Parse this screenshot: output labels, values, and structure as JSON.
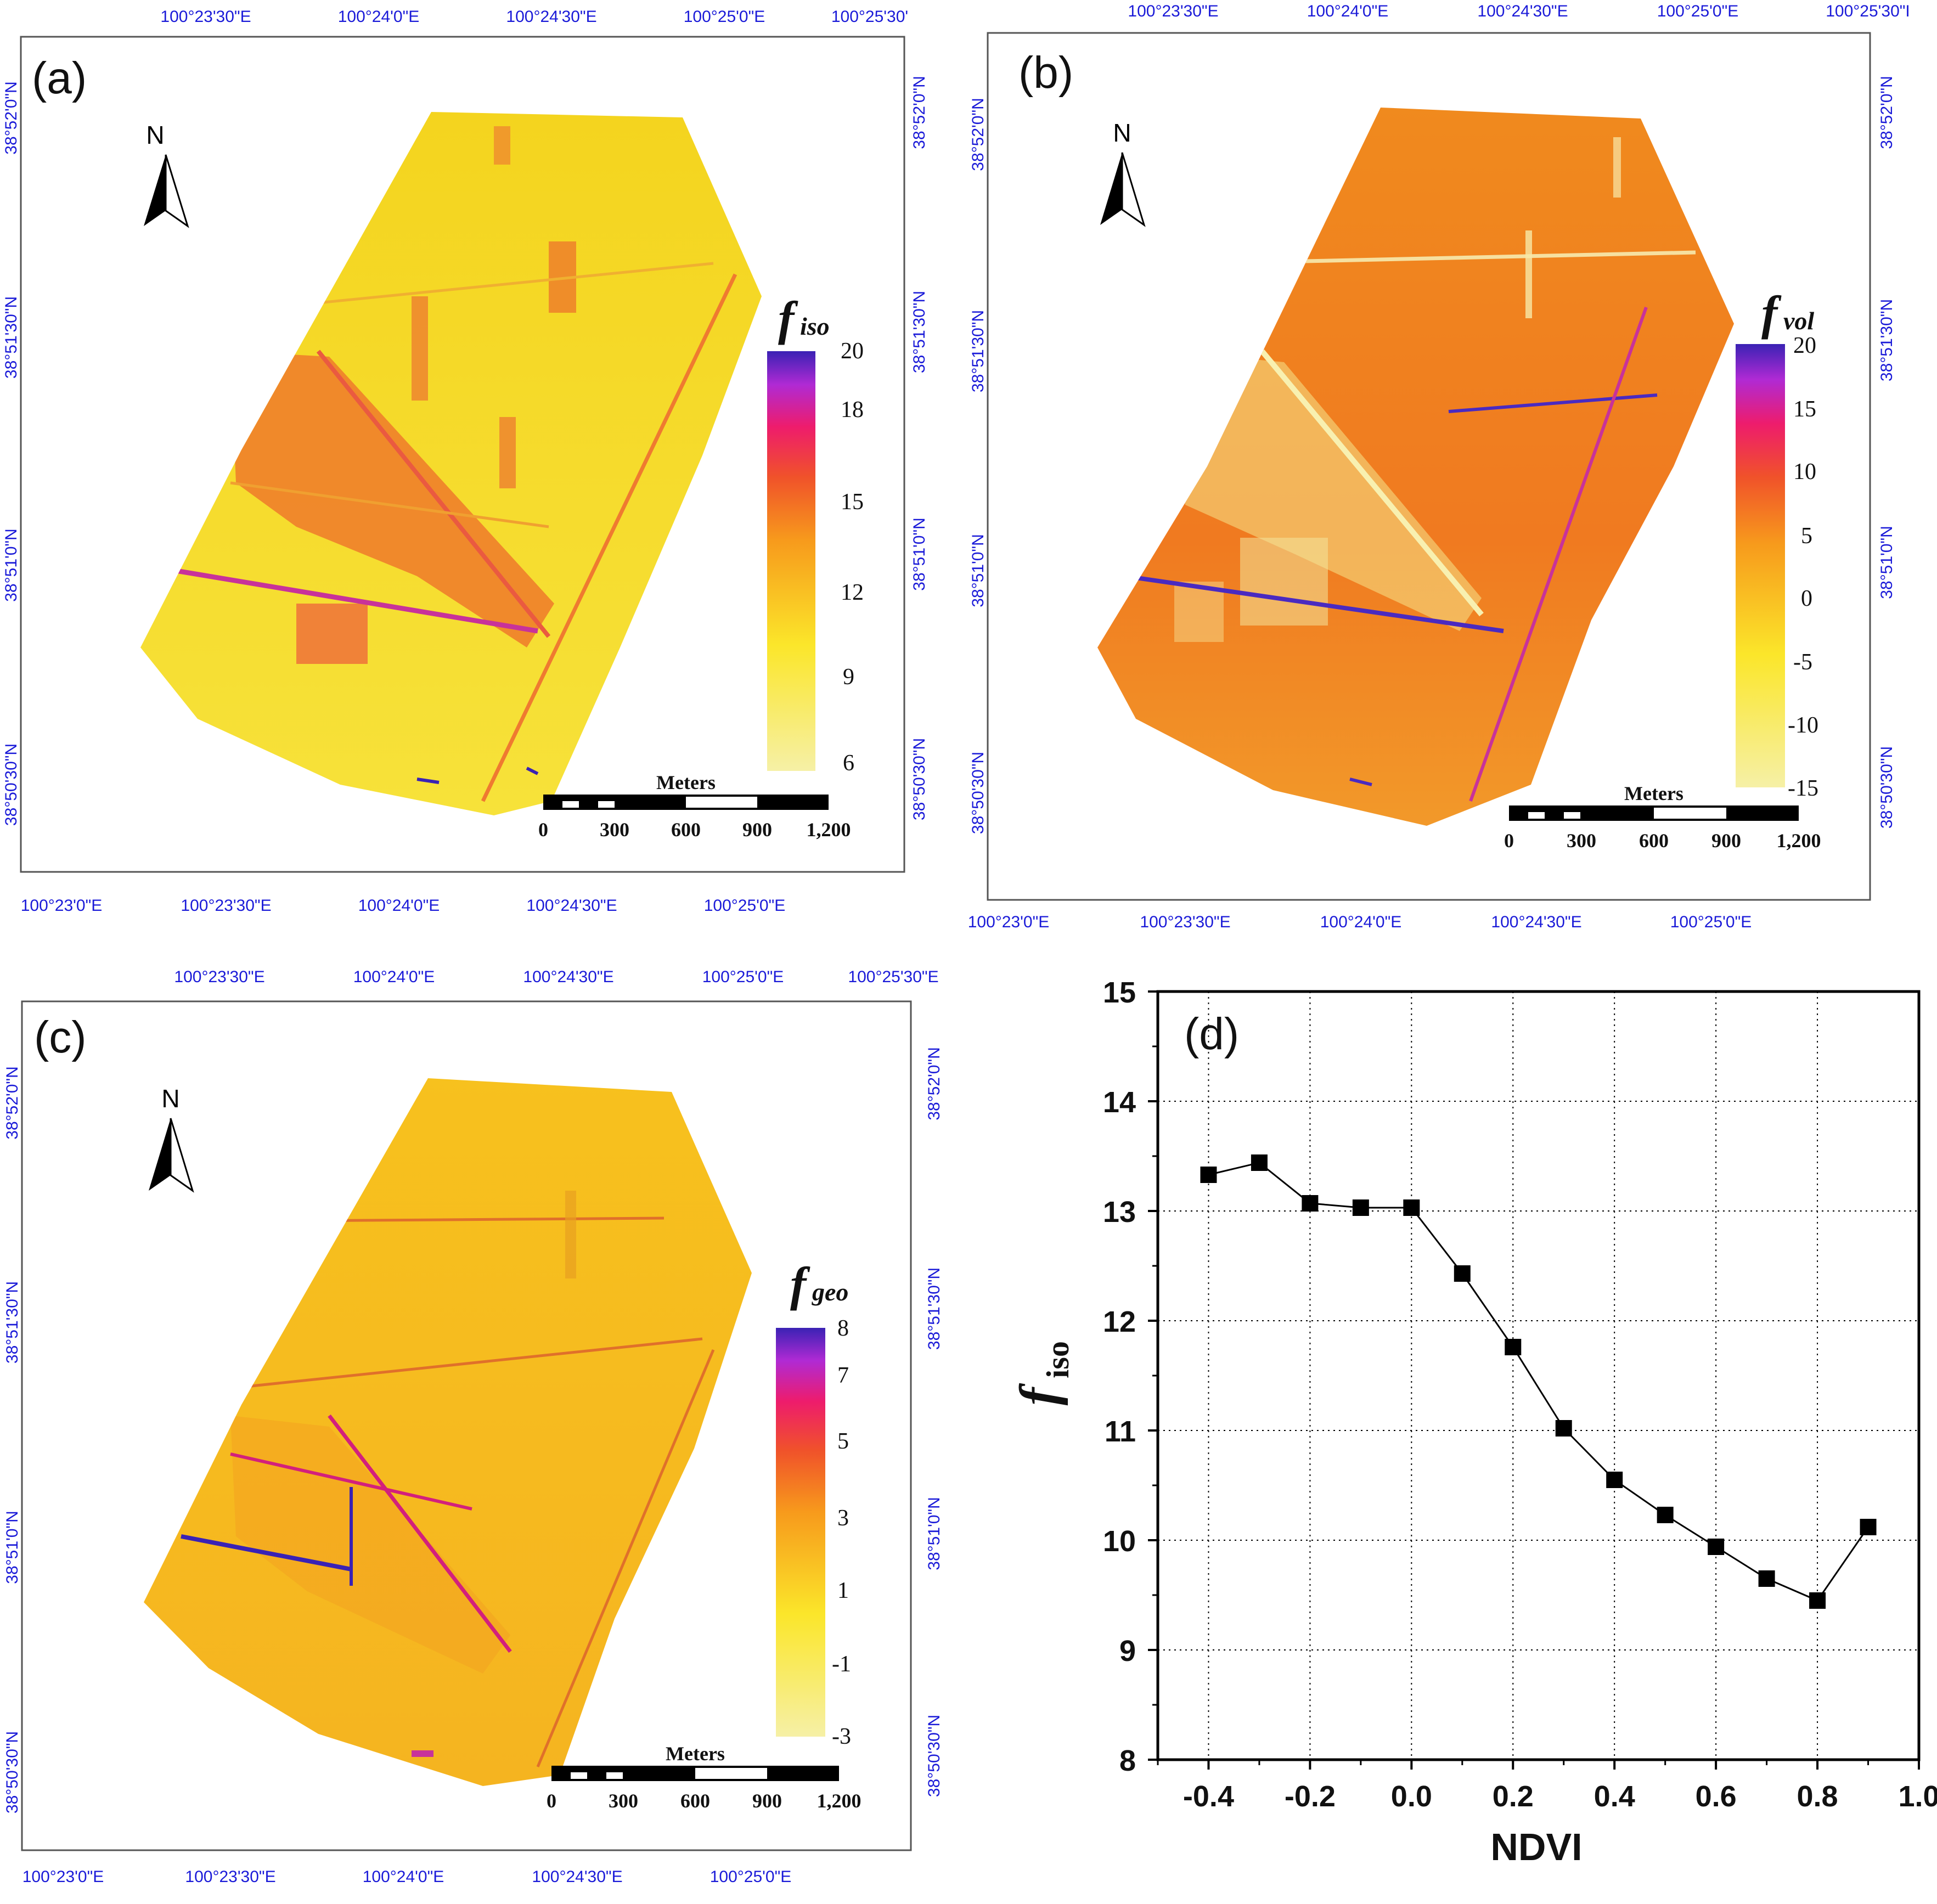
{
  "panels": {
    "a": {
      "label": "(a)",
      "lon_top": [
        "100°23'30\"E",
        "100°24'0\"E",
        "100°24'30\"E",
        "100°25'0\"E",
        "100°25'30'"
      ],
      "lon_bottom": [
        "100°23'0\"E",
        "100°23'30\"E",
        "100°24'0\"E",
        "100°24'30\"E",
        "100°25'0\"E"
      ],
      "lat_left": [
        "38°52'0\"N",
        "38°51'30\"N",
        "38°51'0\"N",
        "38°50'30\"N"
      ],
      "lat_right": [
        "38°52'0\"N",
        "38°51'30\"N",
        "38°51'0\"N",
        "38°50'30\"N"
      ],
      "legend_title_main": "f",
      "legend_title_sub": "iso",
      "legend_ticks": [
        "20",
        "18",
        "15",
        "12",
        "9",
        "6"
      ],
      "scale_title": "Meters",
      "scale_ticks": [
        "0",
        "300",
        "600",
        "900",
        "1,200"
      ],
      "north": "N"
    },
    "b": {
      "label": "(b)",
      "lon_top": [
        "100°23'30\"E",
        "100°24'0\"E",
        "100°24'30\"E",
        "100°25'0\"E",
        "100°25'30\"I"
      ],
      "lon_bottom": [
        "100°23'0\"E",
        "100°23'30\"E",
        "100°24'0\"E",
        "100°24'30\"E",
        "100°25'0\"E"
      ],
      "lat_left": [
        "38°52'0\"N",
        "38°51'30\"N",
        "38°51'0\"N",
        "38°50'30\"N"
      ],
      "lat_right": [
        "38°52'0\"N",
        "38°51'30\"N",
        "38°51'0\"N",
        "38°50'30\"N"
      ],
      "legend_title_main": "f",
      "legend_title_sub": "vol",
      "legend_ticks": [
        "20",
        "15",
        "10",
        "5",
        "0",
        "-5",
        "-10",
        "-15"
      ],
      "scale_title": "Meters",
      "scale_ticks": [
        "0",
        "300",
        "600",
        "900",
        "1,200"
      ],
      "north": "N"
    },
    "c": {
      "label": "(c)",
      "lon_top": [
        "100°23'30\"E",
        "100°24'0\"E",
        "100°24'30\"E",
        "100°25'0\"E",
        "100°25'30\"E"
      ],
      "lon_bottom": [
        "100°23'0\"E",
        "100°23'30\"E",
        "100°24'0\"E",
        "100°24'30\"E",
        "100°25'0\"E"
      ],
      "lat_left": [
        "38°52'0\"N",
        "38°51'30\"N",
        "38°51'0\"N",
        "38°50'30\"N"
      ],
      "lat_right": [
        "38°52'0\"N",
        "38°51'30\"N",
        "38°51'0\"N",
        "38°50'30\"N"
      ],
      "legend_title_main": "f",
      "legend_title_sub": "geo",
      "legend_ticks": [
        "8",
        "7",
        "5",
        "3",
        "1",
        "-1",
        "-3"
      ],
      "scale_title": "Meters",
      "scale_ticks": [
        "0",
        "300",
        "600",
        "900",
        "1,200"
      ],
      "north": "N"
    }
  },
  "chart_data": {
    "type": "line",
    "label": "(d)",
    "xlabel": "NDVI",
    "ylabel_main": "f",
    "ylabel_sub": "iso",
    "x": [
      -0.4,
      -0.3,
      -0.2,
      -0.1,
      0.0,
      0.1,
      0.2,
      0.3,
      0.4,
      0.5,
      0.6,
      0.7,
      0.8,
      0.9
    ],
    "y": [
      13.33,
      13.44,
      13.07,
      13.03,
      13.03,
      12.43,
      11.76,
      11.02,
      10.55,
      10.23,
      9.94,
      9.65,
      9.45,
      10.12
    ],
    "xlim": [
      -0.5,
      1.0
    ],
    "ylim": [
      8,
      15
    ],
    "xticks": [
      -0.4,
      -0.2,
      0.0,
      0.2,
      0.4,
      0.6,
      0.8,
      1.0
    ],
    "xtick_labels": [
      "-0.4",
      "-0.2",
      "0.0",
      "0.2",
      "0.4",
      "0.6",
      "0.8",
      "1.0"
    ],
    "yticks": [
      8,
      9,
      10,
      11,
      12,
      13,
      14,
      15
    ],
    "ytick_labels": [
      "8",
      "9",
      "10",
      "11",
      "12",
      "13",
      "14",
      "15"
    ],
    "grid": true,
    "marker": "square"
  }
}
